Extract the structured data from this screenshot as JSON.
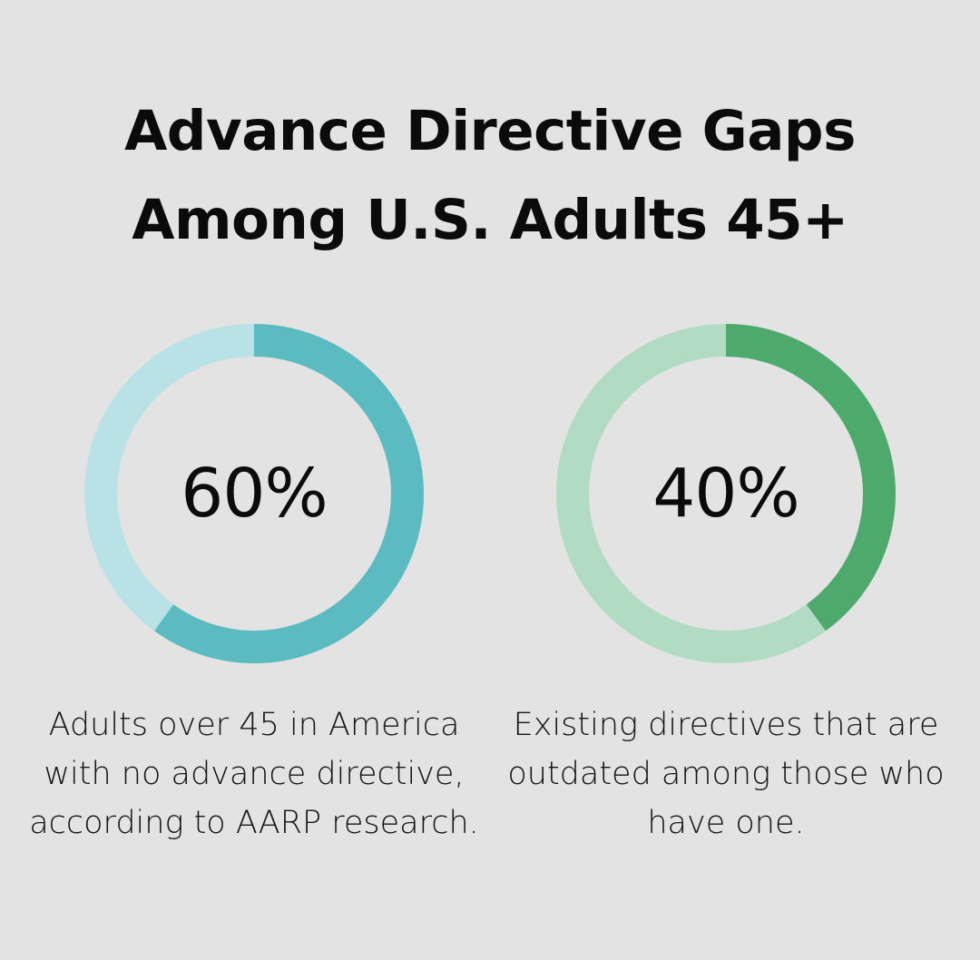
{
  "title": {
    "line1": "Advance Directive Gaps",
    "line2": "Among U.S. Adults 45+"
  },
  "stats": [
    {
      "value_label": "60%",
      "caption": "Adults over 45 in America with no advance directive, according to AARP research.",
      "track_color": "#b8e2e5",
      "fill_color": "#5bbbc0"
    },
    {
      "value_label": "40%",
      "caption": "Existing directives that are outdated among those who have one.",
      "track_color": "#b1dcc3",
      "fill_color": "#4ea96c"
    }
  ],
  "chart_data": [
    {
      "type": "pie",
      "variant": "donut",
      "values": [
        60,
        40
      ],
      "highlighted_value": 60,
      "unit": "%",
      "colors": [
        "#5bbbc0",
        "#b8e2e5"
      ]
    },
    {
      "type": "pie",
      "variant": "donut",
      "values": [
        40,
        60
      ],
      "highlighted_value": 40,
      "unit": "%",
      "colors": [
        "#4ea96c",
        "#b1dcc3"
      ]
    }
  ]
}
